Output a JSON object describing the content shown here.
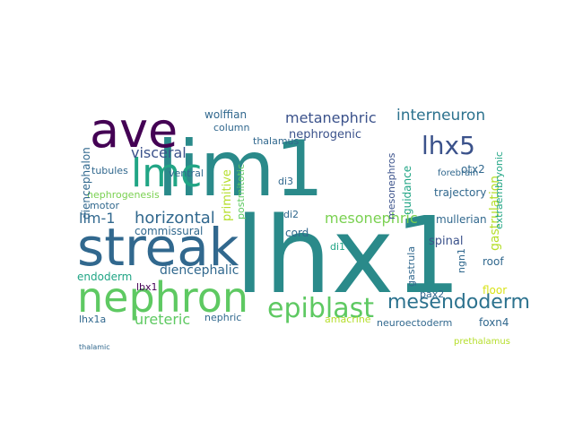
{
  "wordcloud": {
    "words": [
      {
        "text": "lhx1",
        "color": "#2a8a8a"
      },
      {
        "text": "lim1",
        "color": "#2a8a8a"
      },
      {
        "text": "streak",
        "color": "#31688e"
      },
      {
        "text": "nephron",
        "color": "#5ec962"
      },
      {
        "text": "ave",
        "color": "#440154"
      },
      {
        "text": "lmc",
        "color": "#21a585"
      },
      {
        "text": "epiblast",
        "color": "#5ec962"
      },
      {
        "text": "lhx5",
        "color": "#3b528b"
      },
      {
        "text": "mesendoderm",
        "color": "#2c728e"
      },
      {
        "text": "metanephric",
        "color": "#3b528b"
      },
      {
        "text": "interneuron",
        "color": "#2c728e"
      },
      {
        "text": "horizontal",
        "color": "#31688e"
      },
      {
        "text": "mesonephric",
        "color": "#7ad151"
      },
      {
        "text": "gastrulation",
        "color": "#b5de2b"
      },
      {
        "text": "visceral",
        "color": "#3b528b"
      },
      {
        "text": "lim-1",
        "color": "#31688e"
      },
      {
        "text": "nephrogenic",
        "color": "#3b528b"
      },
      {
        "text": "diencephalic",
        "color": "#31688e"
      },
      {
        "text": "ureteric",
        "color": "#5ec962"
      },
      {
        "text": "endoderm",
        "color": "#21a585"
      },
      {
        "text": "spinal",
        "color": "#3b528b"
      },
      {
        "text": "roof",
        "color": "#31688e"
      },
      {
        "text": "floor",
        "color": "#d8e219"
      },
      {
        "text": "foxn4",
        "color": "#31688e"
      },
      {
        "text": "otx2",
        "color": "#31688e"
      },
      {
        "text": "wolffian",
        "color": "#31688e"
      },
      {
        "text": "trajectory",
        "color": "#31688e"
      },
      {
        "text": "mullerian",
        "color": "#31688e"
      },
      {
        "text": "commissural",
        "color": "#31688e"
      },
      {
        "text": "primitive",
        "color": "#b5de2b"
      },
      {
        "text": "postmitotic",
        "color": "#5ec962"
      },
      {
        "text": "mesonephros",
        "color": "#3b528b"
      },
      {
        "text": "guidance",
        "color": "#21a585"
      },
      {
        "text": "diencephalon",
        "color": "#31688e"
      },
      {
        "text": "nephrogenesis",
        "color": "#7ad151"
      },
      {
        "text": "lbx1",
        "color": "#440154"
      },
      {
        "text": "motor",
        "color": "#31688e"
      },
      {
        "text": "ventral",
        "color": "#31688e"
      },
      {
        "text": "tubules",
        "color": "#31688e"
      },
      {
        "text": "column",
        "color": "#31688e"
      },
      {
        "text": "thalamus",
        "color": "#31688e"
      },
      {
        "text": "di3",
        "color": "#31688e"
      },
      {
        "text": "di2",
        "color": "#31688e"
      },
      {
        "text": "di1",
        "color": "#21a585"
      },
      {
        "text": "cord",
        "color": "#31688e"
      },
      {
        "text": "pax2",
        "color": "#31688e"
      },
      {
        "text": "ngn1",
        "color": "#31688e"
      },
      {
        "text": "gastrula",
        "color": "#31688e"
      },
      {
        "text": "amacrine",
        "color": "#b5de2b"
      },
      {
        "text": "neuroectoderm",
        "color": "#31688e"
      },
      {
        "text": "lhx1a",
        "color": "#31688e"
      },
      {
        "text": "nephric",
        "color": "#31688e"
      },
      {
        "text": "forebrain",
        "color": "#31688e"
      },
      {
        "text": "extraembryonic",
        "color": "#21a585"
      },
      {
        "text": "prethalamus",
        "color": "#b5de2b"
      },
      {
        "text": "thalamic",
        "color": "#31688e"
      }
    ]
  }
}
